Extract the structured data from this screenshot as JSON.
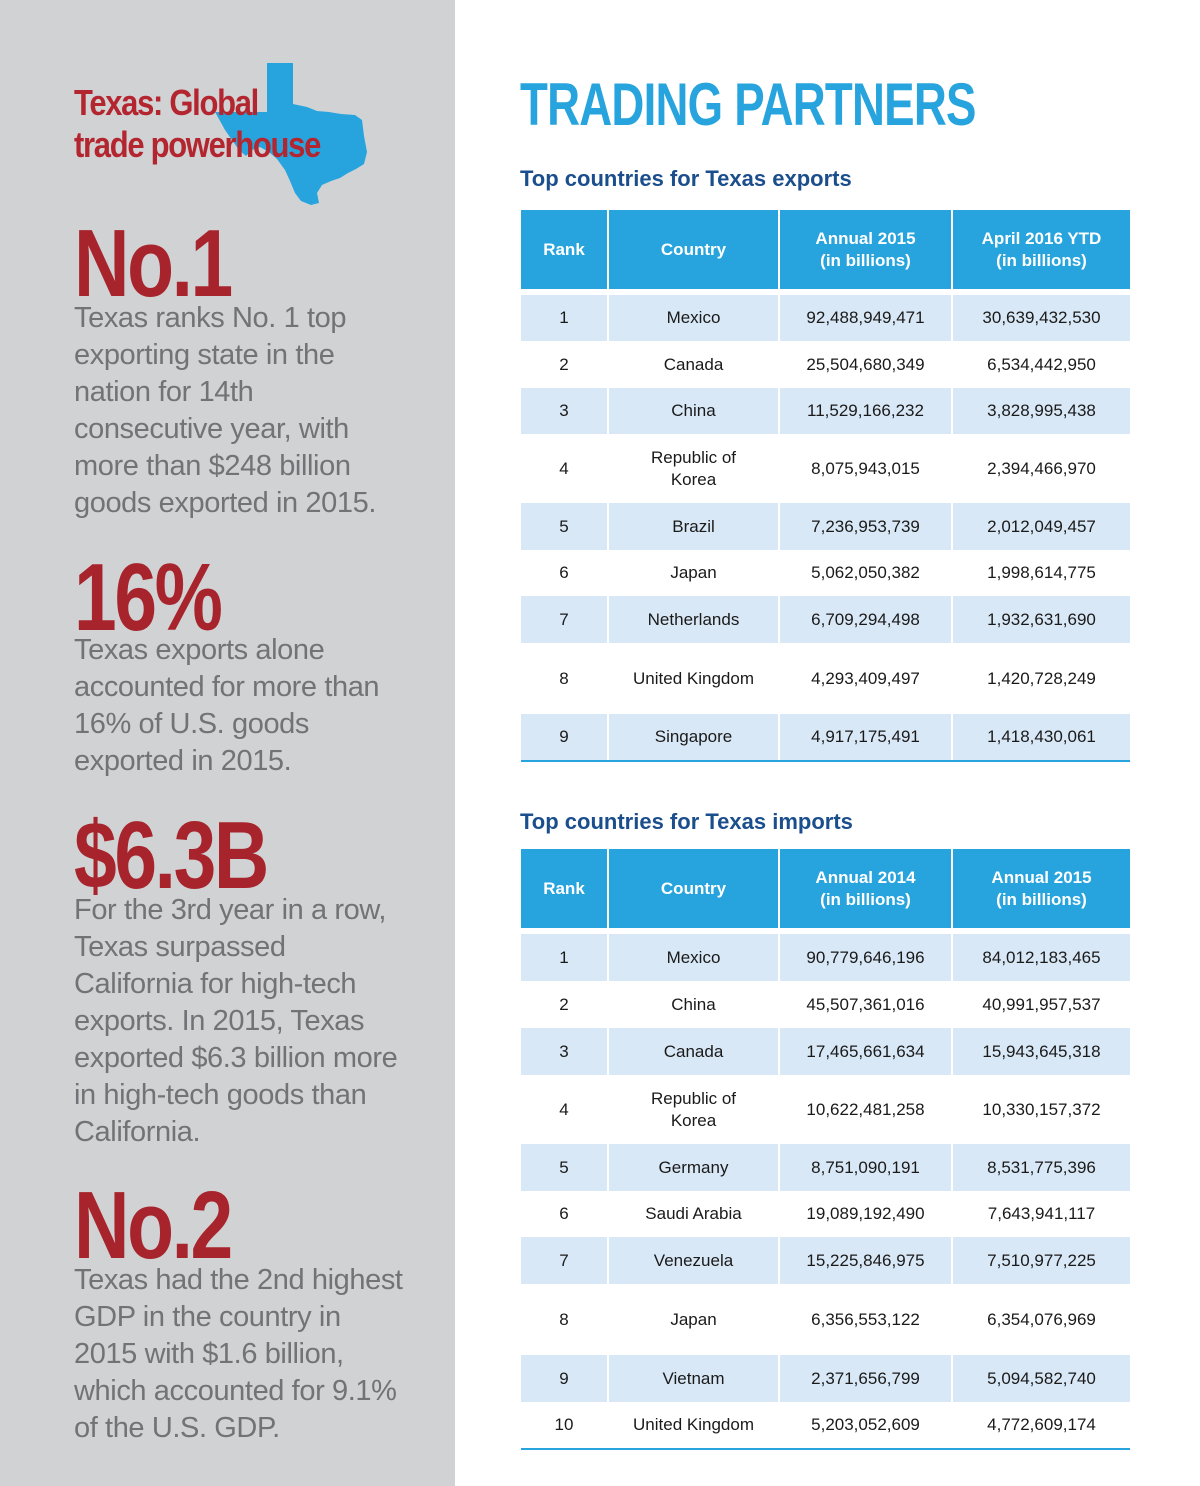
{
  "sidebar": {
    "title_line1": "Texas: Global",
    "title_line2": "trade powerhouse",
    "stats": [
      {
        "value": "No.1",
        "text": "Texas ranks No. 1 top exporting state in the nation for 14th consecutive year, with more than $248 billion goods exported in 2015."
      },
      {
        "value": "16%",
        "text": "Texas exports alone accounted for more than 16% of U.S. goods exported in 2015."
      },
      {
        "value": "$6.3B",
        "text": "For the 3rd year in a row, Texas surpassed California for high-tech exports. In 2015, Texas exported $6.3 billion more in high-tech goods than California."
      },
      {
        "value": "No.2",
        "text": "Texas had the 2nd highest GDP in the country in 2015 with $1.6 billion, which accounted for 9.1% of the U.S. GDP."
      }
    ]
  },
  "main": {
    "title": "TRADING PARTNERS",
    "exports": {
      "title": "Top countries for Texas exports",
      "headers": [
        "Rank",
        "Country",
        "Annual 2015\n(in billions)",
        "April 2016 YTD\n(in billions)"
      ],
      "rows": [
        [
          "1",
          "Mexico",
          "92,488,949,471",
          "30,639,432,530"
        ],
        [
          "2",
          "Canada",
          "25,504,680,349",
          "6,534,442,950"
        ],
        [
          "3",
          "China",
          "11,529,166,232",
          "3,828,995,438"
        ],
        [
          "4",
          "Republic of\nKorea",
          "8,075,943,015",
          "2,394,466,970"
        ],
        [
          "5",
          "Brazil",
          "7,236,953,739",
          "2,012,049,457"
        ],
        [
          "6",
          "Japan",
          "5,062,050,382",
          "1,998,614,775"
        ],
        [
          "7",
          "Netherlands",
          "6,709,294,498",
          "1,932,631,690"
        ],
        [
          "8",
          "United Kingdom",
          "4,293,409,497",
          "1,420,728,249"
        ],
        [
          "9",
          "Singapore",
          "4,917,175,491",
          "1,418,430,061"
        ]
      ]
    },
    "imports": {
      "title": "Top countries for Texas imports",
      "headers": [
        "Rank",
        "Country",
        "Annual 2014\n(in billions)",
        "Annual 2015\n(in billions)"
      ],
      "rows": [
        [
          "1",
          "Mexico",
          "90,779,646,196",
          "84,012,183,465"
        ],
        [
          "2",
          "China",
          "45,507,361,016",
          "40,991,957,537"
        ],
        [
          "3",
          "Canada",
          "17,465,661,634",
          "15,943,645,318"
        ],
        [
          "4",
          "Republic of\nKorea",
          "10,622,481,258",
          "10,330,157,372"
        ],
        [
          "5",
          "Germany",
          "8,751,090,191",
          "8,531,775,396"
        ],
        [
          "6",
          "Saudi Arabia",
          "19,089,192,490",
          "7,643,941,117"
        ],
        [
          "7",
          "Venezuela",
          "15,225,846,975",
          "7,510,977,225"
        ],
        [
          "8",
          "Japan",
          "6,356,553,122",
          "6,354,076,969"
        ],
        [
          "9",
          "Vietnam",
          "2,371,656,799",
          "5,094,582,740"
        ],
        [
          "10",
          "United Kingdom",
          "5,203,052,609",
          "4,772,609,174"
        ]
      ]
    }
  }
}
